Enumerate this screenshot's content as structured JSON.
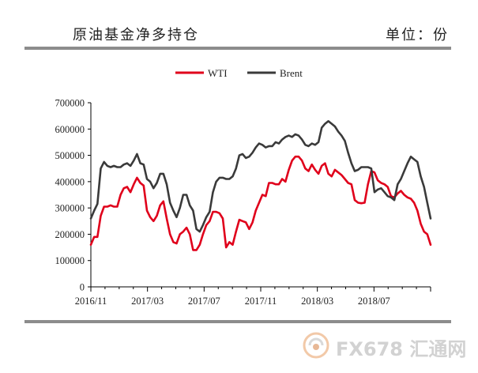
{
  "header": {
    "title": "原油基金净多持仓",
    "unit": "单位：份"
  },
  "watermark": {
    "text": "FX678 汇通网"
  },
  "chart_data": {
    "type": "line",
    "x_tick_labels": [
      "2016/11",
      "2017/03",
      "2017/07",
      "2017/11",
      "2018/03",
      "2018/07"
    ],
    "y_tick_labels": [
      "0",
      "100000",
      "200000",
      "300000",
      "400000",
      "500000",
      "600000",
      "700000"
    ],
    "ylim": [
      0,
      700000
    ],
    "legend_position": "top-center",
    "grid": false,
    "series": [
      {
        "name": "WTI",
        "color": "#e0001b",
        "values": [
          160000,
          190000,
          190000,
          270000,
          305000,
          305000,
          310000,
          305000,
          305000,
          350000,
          375000,
          380000,
          360000,
          390000,
          415000,
          395000,
          385000,
          290000,
          265000,
          250000,
          270000,
          310000,
          325000,
          260000,
          200000,
          170000,
          165000,
          200000,
          210000,
          225000,
          200000,
          140000,
          140000,
          160000,
          200000,
          235000,
          250000,
          285000,
          285000,
          280000,
          260000,
          150000,
          170000,
          160000,
          210000,
          255000,
          250000,
          245000,
          220000,
          245000,
          290000,
          320000,
          350000,
          345000,
          395000,
          395000,
          390000,
          390000,
          410000,
          400000,
          445000,
          480000,
          495000,
          495000,
          480000,
          450000,
          440000,
          465000,
          445000,
          430000,
          460000,
          470000,
          430000,
          420000,
          445000,
          435000,
          425000,
          410000,
          395000,
          390000,
          330000,
          320000,
          318000,
          320000,
          390000,
          440000,
          435000,
          405000,
          395000,
          390000,
          380000,
          345000,
          340000,
          355000,
          365000,
          350000,
          340000,
          335000,
          320000,
          290000,
          240000,
          210000,
          200000,
          160000
        ]
      },
      {
        "name": "Brent",
        "color": "#3a3a3a",
        "values": [
          260000,
          290000,
          315000,
          450000,
          475000,
          460000,
          455000,
          460000,
          455000,
          455000,
          465000,
          470000,
          460000,
          480000,
          505000,
          470000,
          465000,
          410000,
          400000,
          375000,
          395000,
          430000,
          430000,
          390000,
          320000,
          290000,
          265000,
          300000,
          350000,
          350000,
          310000,
          290000,
          220000,
          210000,
          235000,
          265000,
          285000,
          360000,
          400000,
          415000,
          415000,
          410000,
          410000,
          420000,
          450000,
          500000,
          505000,
          490000,
          495000,
          510000,
          530000,
          545000,
          540000,
          530000,
          535000,
          535000,
          550000,
          545000,
          560000,
          570000,
          575000,
          570000,
          580000,
          575000,
          560000,
          540000,
          535000,
          545000,
          540000,
          550000,
          605000,
          620000,
          630000,
          620000,
          610000,
          590000,
          575000,
          555000,
          510000,
          470000,
          440000,
          445000,
          455000,
          455000,
          455000,
          450000,
          360000,
          370000,
          375000,
          360000,
          345000,
          340000,
          330000,
          390000,
          410000,
          440000,
          470000,
          495000,
          485000,
          475000,
          420000,
          380000,
          320000,
          260000
        ]
      }
    ]
  }
}
